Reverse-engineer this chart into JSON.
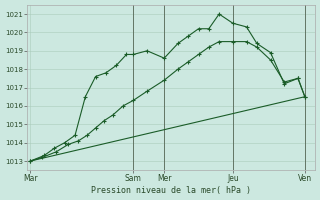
{
  "xlabel": "Pression niveau de la mer( hPa )",
  "background_color": "#cce8e0",
  "grid_color": "#aaccbb",
  "line_color": "#1a5c28",
  "ylim": [
    1012.5,
    1021.5
  ],
  "xlim": [
    -0.1,
    8.3
  ],
  "xtick_labels": [
    "Mar",
    "Sam",
    "Mer",
    "Jeu",
    "Ven"
  ],
  "xtick_positions": [
    0,
    3.0,
    3.9,
    5.9,
    8.0
  ],
  "ytick_values": [
    1013,
    1014,
    1015,
    1016,
    1017,
    1018,
    1019,
    1020,
    1021
  ],
  "series1_x": [
    0.0,
    0.4,
    0.7,
    1.0,
    1.3,
    1.6,
    1.9,
    2.2,
    2.5,
    2.8,
    3.0,
    3.4,
    3.9,
    4.3,
    4.6,
    4.9,
    5.2,
    5.5,
    5.9,
    6.3,
    6.6,
    7.0,
    7.4,
    7.8,
    8.0
  ],
  "series1_y": [
    1013.0,
    1013.3,
    1013.7,
    1014.0,
    1014.4,
    1016.5,
    1017.6,
    1017.8,
    1018.2,
    1018.8,
    1018.8,
    1019.0,
    1018.6,
    1019.4,
    1019.8,
    1020.2,
    1020.2,
    1021.0,
    1020.5,
    1020.3,
    1019.4,
    1018.9,
    1017.2,
    1017.5,
    1016.5
  ],
  "series2_x": [
    0.0,
    8.0
  ],
  "series2_y": [
    1013.0,
    1016.5
  ],
  "series3_x": [
    0.0,
    0.35,
    0.75,
    1.1,
    1.4,
    1.65,
    1.9,
    2.15,
    2.4,
    2.7,
    3.0,
    3.4,
    3.9,
    4.3,
    4.6,
    4.9,
    5.2,
    5.5,
    5.9,
    6.3,
    6.6,
    7.0,
    7.4,
    7.8,
    8.0
  ],
  "series3_y": [
    1013.0,
    1013.2,
    1013.5,
    1013.9,
    1014.1,
    1014.4,
    1014.8,
    1015.2,
    1015.5,
    1016.0,
    1016.3,
    1016.8,
    1017.4,
    1018.0,
    1018.4,
    1018.8,
    1019.2,
    1019.5,
    1019.5,
    1019.5,
    1019.2,
    1018.5,
    1017.3,
    1017.5,
    1016.5
  ],
  "vlines": [
    3.0,
    3.9,
    5.9,
    8.0
  ],
  "figsize": [
    3.2,
    2.0
  ],
  "dpi": 100
}
